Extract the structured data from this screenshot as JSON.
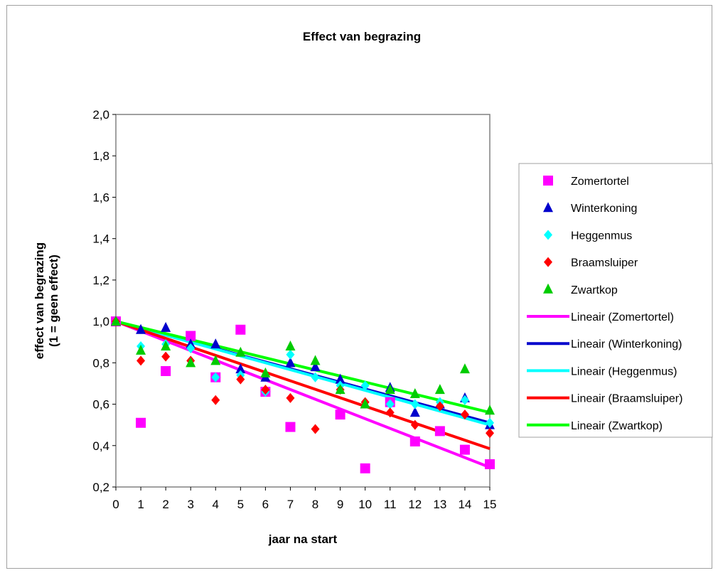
{
  "chart_data": {
    "type": "scatter",
    "title": "Effect van begrazing",
    "xlabel": "jaar na start",
    "ylabel_line1": "effect van begrazing",
    "ylabel_line2": "(1 = geen effect)",
    "xlim": [
      0,
      15
    ],
    "ylim": [
      0.2,
      2.0
    ],
    "xticks": [
      "0",
      "1",
      "2",
      "3",
      "4",
      "5",
      "6",
      "7",
      "8",
      "9",
      "10",
      "11",
      "12",
      "13",
      "14",
      "15"
    ],
    "yticks": [
      "0,2",
      "0,4",
      "0,6",
      "0,8",
      "1,0",
      "1,2",
      "1,4",
      "1,6",
      "1,8",
      "2,0"
    ],
    "grid": false,
    "legend_position": "right",
    "series": [
      {
        "name": "Zomertortel",
        "marker": "square",
        "color": "#ff00ff",
        "x": [
          0,
          1,
          2,
          3,
          4,
          5,
          6,
          7,
          9,
          10,
          11,
          12,
          13,
          14,
          15
        ],
        "y": [
          1.0,
          0.51,
          0.76,
          0.93,
          0.73,
          0.96,
          0.66,
          0.49,
          0.55,
          0.29,
          0.61,
          0.42,
          0.47,
          0.38,
          0.31
        ]
      },
      {
        "name": "Winterkoning",
        "marker": "triangle",
        "color": "#0000cc",
        "x": [
          0,
          1,
          2,
          3,
          4,
          5,
          6,
          7,
          8,
          9,
          10,
          11,
          12,
          13,
          14,
          15
        ],
        "y": [
          1.0,
          0.96,
          0.97,
          0.89,
          0.89,
          0.77,
          0.73,
          0.8,
          0.78,
          0.72,
          0.6,
          0.68,
          0.56,
          0.6,
          0.63,
          0.5
        ]
      },
      {
        "name": "Heggenmus",
        "marker": "diamond",
        "color": "#00ffff",
        "x": [
          0,
          1,
          2,
          3,
          4,
          5,
          6,
          7,
          8,
          9,
          10,
          11,
          12,
          13,
          14,
          15
        ],
        "y": [
          1.0,
          0.88,
          0.89,
          0.87,
          0.73,
          0.74,
          0.66,
          0.84,
          0.73,
          0.69,
          0.69,
          0.6,
          0.6,
          0.61,
          0.62,
          0.51
        ]
      },
      {
        "name": "Braamsluiper",
        "marker": "diamond",
        "color": "#ff0000",
        "x": [
          0,
          1,
          2,
          3,
          4,
          5,
          6,
          7,
          8,
          9,
          10,
          11,
          12,
          13,
          14,
          15
        ],
        "y": [
          1.0,
          0.81,
          0.83,
          0.81,
          0.62,
          0.72,
          0.67,
          0.63,
          0.48,
          0.67,
          0.61,
          0.56,
          0.5,
          0.59,
          0.55,
          0.46
        ]
      },
      {
        "name": "Zwartkop",
        "marker": "triangle",
        "color": "#00cc00",
        "x": [
          0,
          1,
          2,
          3,
          4,
          5,
          6,
          7,
          8,
          9,
          10,
          11,
          12,
          13,
          14,
          15
        ],
        "y": [
          1.0,
          0.86,
          0.88,
          0.8,
          0.81,
          0.85,
          0.75,
          0.88,
          0.81,
          0.67,
          0.6,
          0.67,
          0.65,
          0.67,
          0.77,
          0.57
        ]
      }
    ],
    "trendlines": [
      {
        "name": "Lineair (Zomertortel)",
        "color": "#ff00ff",
        "x": [
          0,
          15
        ],
        "y": [
          1.0,
          0.295
        ]
      },
      {
        "name": "Lineair (Winterkoning)",
        "color": "#0000cc",
        "x": [
          0,
          15
        ],
        "y": [
          1.0,
          0.51
        ]
      },
      {
        "name": "Lineair (Heggenmus)",
        "color": "#00ffff",
        "x": [
          0,
          15
        ],
        "y": [
          1.0,
          0.5
        ]
      },
      {
        "name": "Lineair (Braamsluiper)",
        "color": "#ff0000",
        "x": [
          0,
          15
        ],
        "y": [
          1.0,
          0.385
        ]
      },
      {
        "name": "Lineair (Zwartkop)",
        "color": "#00ff00",
        "x": [
          0,
          15
        ],
        "y": [
          1.0,
          0.56
        ]
      }
    ]
  }
}
